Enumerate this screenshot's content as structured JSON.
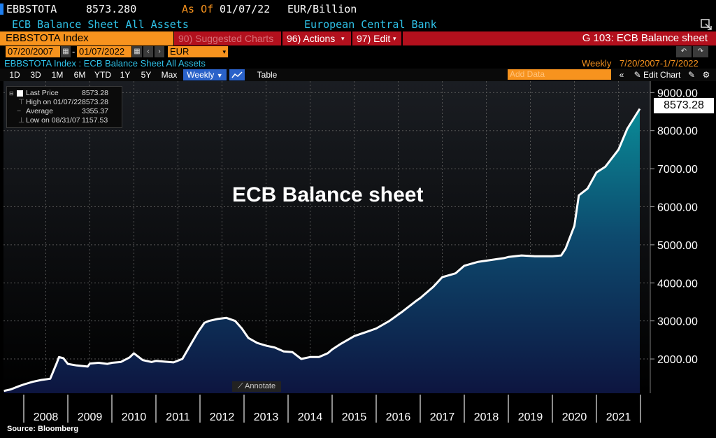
{
  "header": {
    "ticker": "EBBSTOTA",
    "last_price": "8573.280",
    "as_of_label": "As Of",
    "as_of_date": "01/07/22",
    "units": "EUR/Billion",
    "description": "ECB Balance Sheet All Assets",
    "source_name": "European Central Bank"
  },
  "toolbar": {
    "security": "EBBSTOTA Index",
    "suggested_charts": "90) Suggested Charts",
    "actions": "96) Actions",
    "edit": "97) Edit",
    "chart_id": "G 103: ECB Balance sheet"
  },
  "range": {
    "start_date": "07/20/2007",
    "dash": "-",
    "end_date": "01/07/2022",
    "currency": "EUR"
  },
  "info": {
    "series_label": "EBBSTOTA Index : ECB Balance Sheet All Assets",
    "frequency": "Weekly",
    "date_range": "7/20/2007-1/7/2022",
    "add_data_placeholder": "Add Data",
    "edit_chart": "Edit Chart"
  },
  "periods": [
    "1D",
    "3D",
    "1M",
    "6M",
    "YTD",
    "1Y",
    "5Y",
    "Max"
  ],
  "frequency_select": "Weekly",
  "table_label": "Table",
  "legend": [
    {
      "label": "Last Price",
      "value": "8573.28"
    },
    {
      "label": "High on 01/07/22",
      "value": "8573.28"
    },
    {
      "label": "Average",
      "value": "3355.37"
    },
    {
      "label": "Low on 08/31/07",
      "value": "1157.53"
    }
  ],
  "annotate_label": "Annotate",
  "source_note": "Source: Bloomberg",
  "colors": {
    "accent_orange": "#f7931e",
    "cyan": "#2fc2e8",
    "red_bar": "#c1121f",
    "area_top": "#0a8b97",
    "area_bottom": "#0d1540"
  },
  "chart_data": {
    "type": "area",
    "title": "ECB Balance sheet",
    "last_value_label": "8573.28",
    "ylim": [
      1100,
      9300
    ],
    "y_ticks": [
      2000,
      3000,
      4000,
      5000,
      6000,
      7000,
      8000,
      9000
    ],
    "y_tick_labels": [
      "2000.00",
      "3000.00",
      "4000.00",
      "5000.00",
      "6000.00",
      "7000.00",
      "8000.00",
      "9000.00"
    ],
    "x_tick_labels": [
      "2008",
      "2009",
      "2010",
      "2011",
      "2012",
      "2013",
      "2014",
      "2015",
      "2016",
      "2017",
      "2018",
      "2019",
      "2020",
      "2021"
    ],
    "grid": true,
    "x": [
      2007.55,
      2007.7,
      2007.9,
      2008.0,
      2008.2,
      2008.4,
      2008.6,
      2008.75,
      2008.8,
      2008.9,
      2009.0,
      2009.2,
      2009.45,
      2009.5,
      2009.7,
      2009.9,
      2010.0,
      2010.2,
      2010.4,
      2010.5,
      2010.7,
      2010.9,
      2011.0,
      2011.2,
      2011.4,
      2011.6,
      2011.8,
      2011.95,
      2012.1,
      2012.2,
      2012.4,
      2012.6,
      2012.8,
      2012.95,
      2013.1,
      2013.3,
      2013.5,
      2013.7,
      2013.9,
      2014.1,
      2014.3,
      2014.5,
      2014.7,
      2014.9,
      2015.0,
      2015.2,
      2015.5,
      2015.8,
      2016.0,
      2016.3,
      2016.6,
      2016.9,
      2017.0,
      2017.3,
      2017.5,
      2017.8,
      2018.0,
      2018.3,
      2018.6,
      2018.9,
      2019.0,
      2019.3,
      2019.6,
      2019.9,
      2020.0,
      2020.2,
      2020.3,
      2020.5,
      2020.6,
      2020.8,
      2021.0,
      2021.2,
      2021.5,
      2021.7,
      2022.02
    ],
    "values": [
      1160,
      1200,
      1290,
      1330,
      1400,
      1450,
      1480,
      1900,
      2050,
      2020,
      1870,
      1830,
      1800,
      1880,
      1900,
      1870,
      1900,
      1920,
      2040,
      2150,
      1970,
      1920,
      1950,
      1930,
      1910,
      2000,
      2400,
      2700,
      2950,
      3000,
      3050,
      3080,
      3000,
      2800,
      2550,
      2420,
      2350,
      2300,
      2200,
      2180,
      2000,
      2050,
      2050,
      2150,
      2250,
      2400,
      2600,
      2720,
      2800,
      3000,
      3250,
      3520,
      3600,
      3900,
      4150,
      4250,
      4450,
      4550,
      4600,
      4650,
      4680,
      4720,
      4700,
      4700,
      4700,
      4720,
      4900,
      5500,
      6300,
      6480,
      6900,
      7050,
      7500,
      8050,
      8573.28
    ]
  }
}
